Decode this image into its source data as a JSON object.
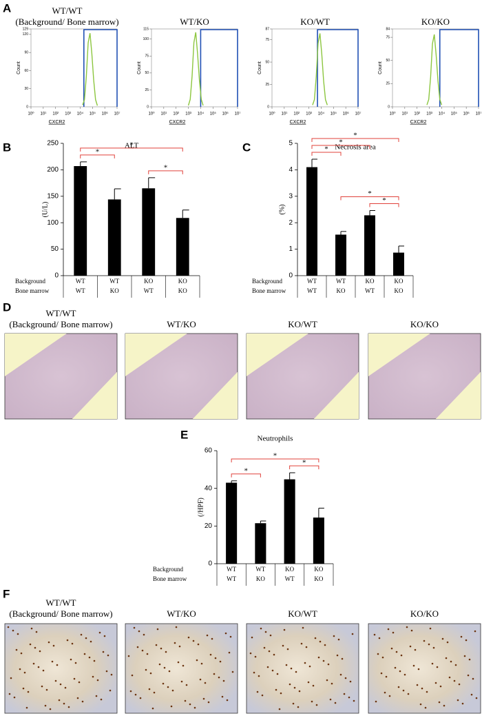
{
  "panel_labels": [
    "A",
    "B",
    "C",
    "D",
    "E",
    "F"
  ],
  "chart_data": [
    {
      "type": "line",
      "title": "WT/WT",
      "subtitle": "(Background/ Bone marrow)",
      "ylabel": "Count",
      "xlabel": "CXCR2",
      "xscale": "log",
      "color": "#8cc63f",
      "gate_color": "#1f4fb4",
      "x": [
        15800,
        22400,
        31600,
        44700,
        63100,
        89100,
        126000,
        178000,
        251000
      ],
      "values": [
        3,
        12,
        50,
        106,
        122,
        88,
        44,
        12,
        2
      ],
      "gate": [
        20000,
        10000000
      ],
      "xlim": [
        1,
        10000000
      ],
      "xticks": [
        {
          "value": 1,
          "label": "10⁰"
        },
        {
          "value": 10,
          "label": "10¹"
        },
        {
          "value": 100,
          "label": "10²"
        },
        {
          "value": 1000,
          "label": "10³"
        },
        {
          "value": 10000,
          "label": "10⁴"
        },
        {
          "value": 100000,
          "label": "10⁵"
        },
        {
          "value": 1000000,
          "label": "10⁶"
        },
        {
          "value": 10000000,
          "label": "10⁷"
        }
      ],
      "ylim": [
        0,
        129
      ],
      "yticks": [
        0,
        30,
        60,
        90,
        120,
        129
      ]
    },
    {
      "type": "line",
      "title": "WT/KO",
      "ylabel": "Count",
      "xlabel": "CXCR2",
      "xscale": "log",
      "color": "#8cc63f",
      "gate_color": "#1f4fb4",
      "x": [
        1000,
        1410,
        2000,
        2820,
        3980,
        5620,
        7940,
        11200,
        15800
      ],
      "values": [
        2,
        11,
        45,
        95,
        110,
        78,
        39,
        11,
        2
      ],
      "gate": [
        10000,
        10000000
      ],
      "xlim": [
        1,
        10000000
      ],
      "xticks": [
        {
          "value": 1,
          "label": "10⁰"
        },
        {
          "value": 10,
          "label": "10¹"
        },
        {
          "value": 100,
          "label": "10²"
        },
        {
          "value": 1000,
          "label": "10³"
        },
        {
          "value": 10000,
          "label": "10⁴"
        },
        {
          "value": 100000,
          "label": "10⁵"
        },
        {
          "value": 1000000,
          "label": "10⁶"
        },
        {
          "value": 10000000,
          "label": "10⁷"
        }
      ],
      "ylim": [
        0,
        115
      ],
      "yticks": [
        0,
        25,
        50,
        75,
        100,
        115
      ]
    },
    {
      "type": "line",
      "title": "KO/WT",
      "ylabel": "Count",
      "xlabel": "CXCR2",
      "xscale": "log",
      "color": "#8cc63f",
      "gate_color": "#1f4fb4",
      "x": [
        2000,
        2820,
        3980,
        5620,
        7940,
        11200,
        15800,
        22400,
        31600
      ],
      "values": [
        2,
        8,
        34,
        71,
        82,
        59,
        29,
        8,
        2
      ],
      "gate": [
        5000,
        10000000
      ],
      "xlim": [
        1,
        10000000
      ],
      "xticks": [
        {
          "value": 1,
          "label": "10⁰"
        },
        {
          "value": 10,
          "label": "10¹"
        },
        {
          "value": 100,
          "label": "10²"
        },
        {
          "value": 1000,
          "label": "10³"
        },
        {
          "value": 10000,
          "label": "10⁴"
        },
        {
          "value": 100000,
          "label": "10⁵"
        },
        {
          "value": 1000000,
          "label": "10⁶"
        },
        {
          "value": 10000000,
          "label": "10⁷"
        }
      ],
      "ylim": [
        0,
        87
      ],
      "yticks": [
        0,
        25,
        50,
        75,
        87
      ]
    },
    {
      "type": "line",
      "title": "KO/KO",
      "ylabel": "Count",
      "xlabel": "CXCR2",
      "xscale": "log",
      "color": "#8cc63f",
      "gate_color": "#1f4fb4",
      "x": [
        631,
        891,
        1260,
        1780,
        2510,
        3550,
        5010,
        7080,
        10000
      ],
      "values": [
        2,
        8,
        32,
        68,
        78,
        56,
        28,
        8,
        2
      ],
      "gate": [
        7080,
        10000000
      ],
      "xlim": [
        1,
        10000000
      ],
      "xticks": [
        {
          "value": 1,
          "label": "10⁰"
        },
        {
          "value": 10,
          "label": "10¹"
        },
        {
          "value": 100,
          "label": "10²"
        },
        {
          "value": 1000,
          "label": "10³"
        },
        {
          "value": 10000,
          "label": "10⁴"
        },
        {
          "value": 100000,
          "label": "10⁵"
        },
        {
          "value": 1000000,
          "label": "10⁶"
        },
        {
          "value": 10000000,
          "label": "10⁷"
        }
      ],
      "ylim": [
        0,
        84
      ],
      "yticks": [
        0,
        25,
        50,
        75,
        84
      ]
    },
    {
      "type": "bar",
      "title": "ALT",
      "ylabel": "(U/L)",
      "color": "#000000",
      "bracket_color": "#e0403a",
      "row_labels": [
        "Background",
        "Bone marrow"
      ],
      "categories": [
        [
          "WT",
          "WT"
        ],
        [
          "WT",
          "KO"
        ],
        [
          "KO",
          "WT"
        ],
        [
          "KO",
          "KO"
        ]
      ],
      "values": [
        207,
        144,
        165,
        109
      ],
      "errors": [
        8,
        20,
        20,
        15
      ],
      "ylim": [
        0,
        250
      ],
      "yticks": [
        0,
        50,
        100,
        150,
        200,
        250
      ],
      "significance": [
        {
          "pair": [
            0,
            1
          ],
          "label": "*"
        },
        {
          "pair": [
            2,
            3
          ],
          "label": "*"
        },
        {
          "pair": [
            0,
            3
          ],
          "label": "*"
        }
      ]
    },
    {
      "type": "bar",
      "title": "Necrosis area",
      "ylabel": "(%)",
      "color": "#000000",
      "bracket_color": "#e0403a",
      "row_labels": [
        "Background",
        "Bone marrow"
      ],
      "categories": [
        [
          "WT",
          "WT"
        ],
        [
          "WT",
          "KO"
        ],
        [
          "KO",
          "WT"
        ],
        [
          "KO",
          "KO"
        ]
      ],
      "values": [
        4.1,
        1.55,
        2.28,
        0.87
      ],
      "errors": [
        0.3,
        0.12,
        0.18,
        0.25
      ],
      "ylim": [
        0,
        5
      ],
      "yticks": [
        0,
        1,
        2,
        3,
        4,
        5
      ],
      "significance": [
        {
          "pair": [
            2,
            3
          ],
          "label": "*"
        },
        {
          "pair": [
            1,
            3
          ],
          "label": "*"
        },
        {
          "pair": [
            0,
            1
          ],
          "label": "*"
        },
        {
          "pair": [
            0,
            2
          ],
          "label": "*"
        },
        {
          "pair": [
            0,
            3
          ],
          "label": "*"
        }
      ]
    },
    {
      "type": "bar",
      "title": "Neutrophils",
      "ylabel": "(/HPF)",
      "color": "#000000",
      "bracket_color": "#e0403a",
      "row_labels": [
        "Background",
        "Bone marrow"
      ],
      "categories": [
        [
          "WT",
          "WT"
        ],
        [
          "WT",
          "KO"
        ],
        [
          "KO",
          "WT"
        ],
        [
          "KO",
          "KO"
        ]
      ],
      "values": [
        43,
        21.5,
        44.8,
        24.5
      ],
      "errors": [
        1,
        1.2,
        3.5,
        5
      ],
      "ylim": [
        0,
        60
      ],
      "yticks": [
        0,
        20,
        40,
        60
      ],
      "significance": [
        {
          "pair": [
            0,
            1
          ],
          "label": "*"
        },
        {
          "pair": [
            2,
            3
          ],
          "label": "*"
        },
        {
          "pair": [
            0,
            3
          ],
          "label": "*"
        }
      ]
    }
  ],
  "micrographs": {
    "D": [
      [
        "WT/WT",
        "(Background/ Bone marrow)"
      ],
      [
        "WT/KO"
      ],
      [
        "KO/WT"
      ],
      [
        "KO/KO"
      ]
    ],
    "F": [
      [
        "WT/WT",
        "(Background/ Bone marrow)"
      ],
      [
        "WT/KO"
      ],
      [
        "KO/WT"
      ],
      [
        "KO/KO"
      ]
    ]
  }
}
